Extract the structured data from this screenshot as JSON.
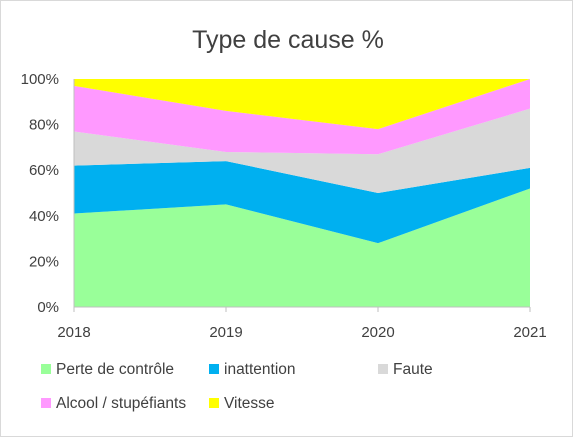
{
  "chart_data": {
    "type": "area",
    "stacked": true,
    "percent": true,
    "title": "Type de cause %",
    "xlabel": "",
    "ylabel": "",
    "categories": [
      "2018",
      "2019",
      "2020",
      "2021"
    ],
    "y_ticks": [
      "0%",
      "20%",
      "40%",
      "60%",
      "80%",
      "100%"
    ],
    "ylim": [
      0,
      100
    ],
    "grid": false,
    "legend_position": "bottom",
    "series": [
      {
        "name": "Perte de contrôle",
        "color": "#99ff99",
        "values": [
          41,
          45,
          28,
          52
        ]
      },
      {
        "name": "inattention",
        "color": "#00b0f0",
        "values": [
          21,
          19,
          22,
          9
        ]
      },
      {
        "name": "Faute",
        "color": "#d9d9d9",
        "values": [
          15,
          4,
          17,
          26
        ]
      },
      {
        "name": "Alcool / stupéfiants",
        "color": "#ff99ff",
        "values": [
          20,
          18,
          11,
          13
        ]
      },
      {
        "name": "Vitesse",
        "color": "#ffff00",
        "values": [
          3,
          14,
          22,
          0
        ]
      }
    ]
  }
}
